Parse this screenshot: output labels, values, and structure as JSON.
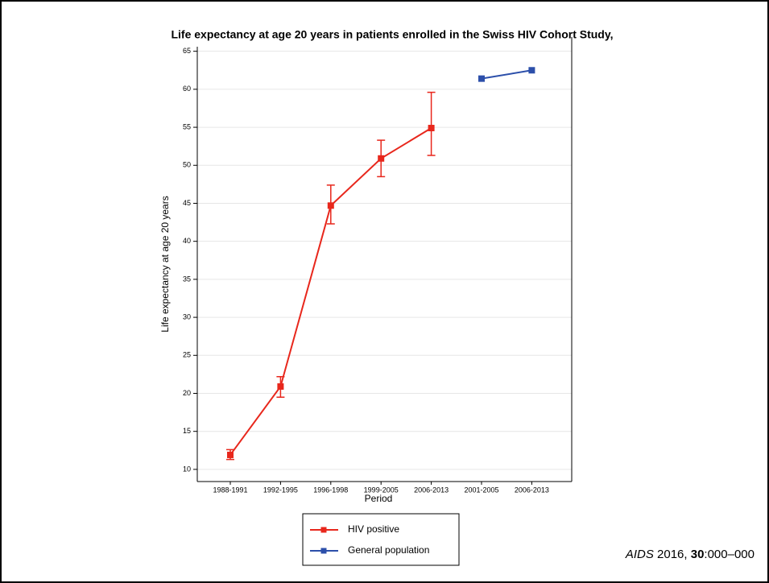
{
  "chart_data": {
    "type": "line",
    "title": "Life expectancy at age 20 years in patients enrolled in the Swiss HIV Cohort Study,",
    "x_label": "Period",
    "y_label": "Life expectancy at age 20 years",
    "categories": [
      "1988-1991",
      "1992-1995",
      "1996-1998",
      "1999-2005",
      "2006-2013",
      "2001-2005",
      "2006-2013"
    ],
    "series": [
      {
        "name": "HIV positive",
        "color": "#e8271c",
        "values": [
          11.9,
          20.9,
          44.7,
          50.9,
          54.9,
          null,
          null
        ],
        "lower": [
          11.3,
          19.5,
          42.3,
          48.5,
          51.3,
          null,
          null
        ],
        "upper": [
          12.6,
          22.2,
          47.4,
          53.3,
          59.6,
          null,
          null
        ]
      },
      {
        "name": "General population",
        "color": "#2c4faa",
        "values": [
          null,
          null,
          null,
          null,
          null,
          61.4,
          62.5
        ]
      }
    ],
    "ylim": [
      8.4,
      65.6
    ],
    "yticks": [
      10,
      15,
      20,
      25,
      30,
      35,
      40,
      45,
      50,
      55,
      60,
      65
    ],
    "grid": true,
    "legend": "bottom"
  },
  "citation": {
    "journal": "AIDS",
    "year": "2016,",
    "volume": "30",
    "pages": ":000–000"
  }
}
